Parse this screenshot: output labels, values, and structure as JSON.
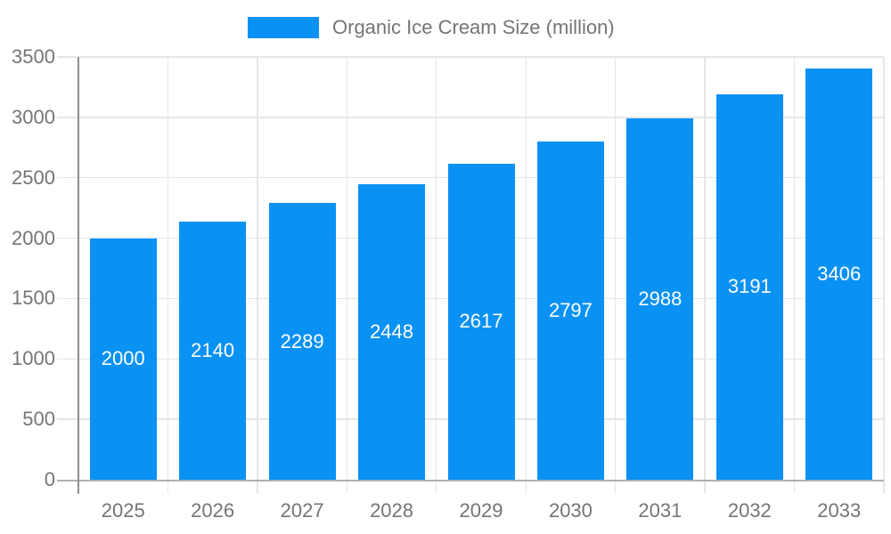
{
  "chart_data": {
    "type": "bar",
    "title": "Organic Ice Cream Size (million)",
    "series": [
      {
        "name": "Organic Ice Cream Size (million)",
        "values": [
          2000,
          2140,
          2289,
          2448,
          2617,
          2797,
          2988,
          3191,
          3406
        ]
      }
    ],
    "categories": [
      "2025",
      "2026",
      "2027",
      "2028",
      "2029",
      "2030",
      "2031",
      "2032",
      "2033"
    ],
    "xlabel": "",
    "ylabel": "",
    "ylim": [
      0,
      3500
    ],
    "yticks": [
      0,
      500,
      1000,
      1500,
      2000,
      2500,
      3000,
      3500
    ],
    "grid": true,
    "legend_position": "top",
    "bar_labels": "inside-center",
    "colors": {
      "bar": "#0a91f4",
      "bar_label_text": "#ffffff",
      "axis_text": "#757575",
      "gridline": "#e6e6e6",
      "x_axis_line": "#b0b0b0",
      "y_axis_line": "#8f8f8f",
      "background": "#ffffff"
    }
  }
}
